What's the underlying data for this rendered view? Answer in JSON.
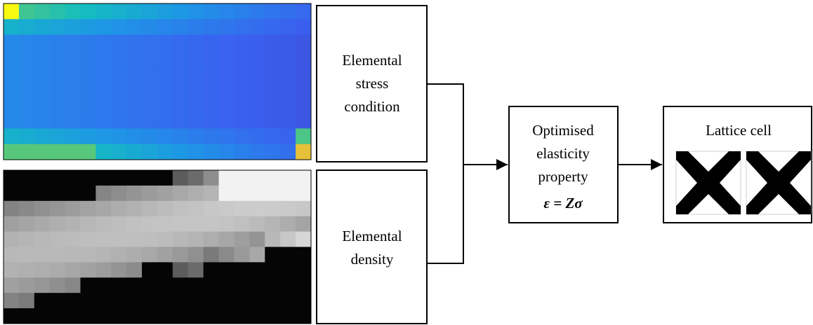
{
  "nodes": [
    {
      "label": [
        "Elemental",
        "stress",
        "condition"
      ]
    },
    {
      "label": [
        "Elemental",
        "density"
      ]
    },
    {
      "label": [
        "Optimised",
        "elasticity",
        "property"
      ],
      "formula": "ε = Zσ"
    },
    {
      "label": [
        "Lattice cell"
      ]
    }
  ]
}
